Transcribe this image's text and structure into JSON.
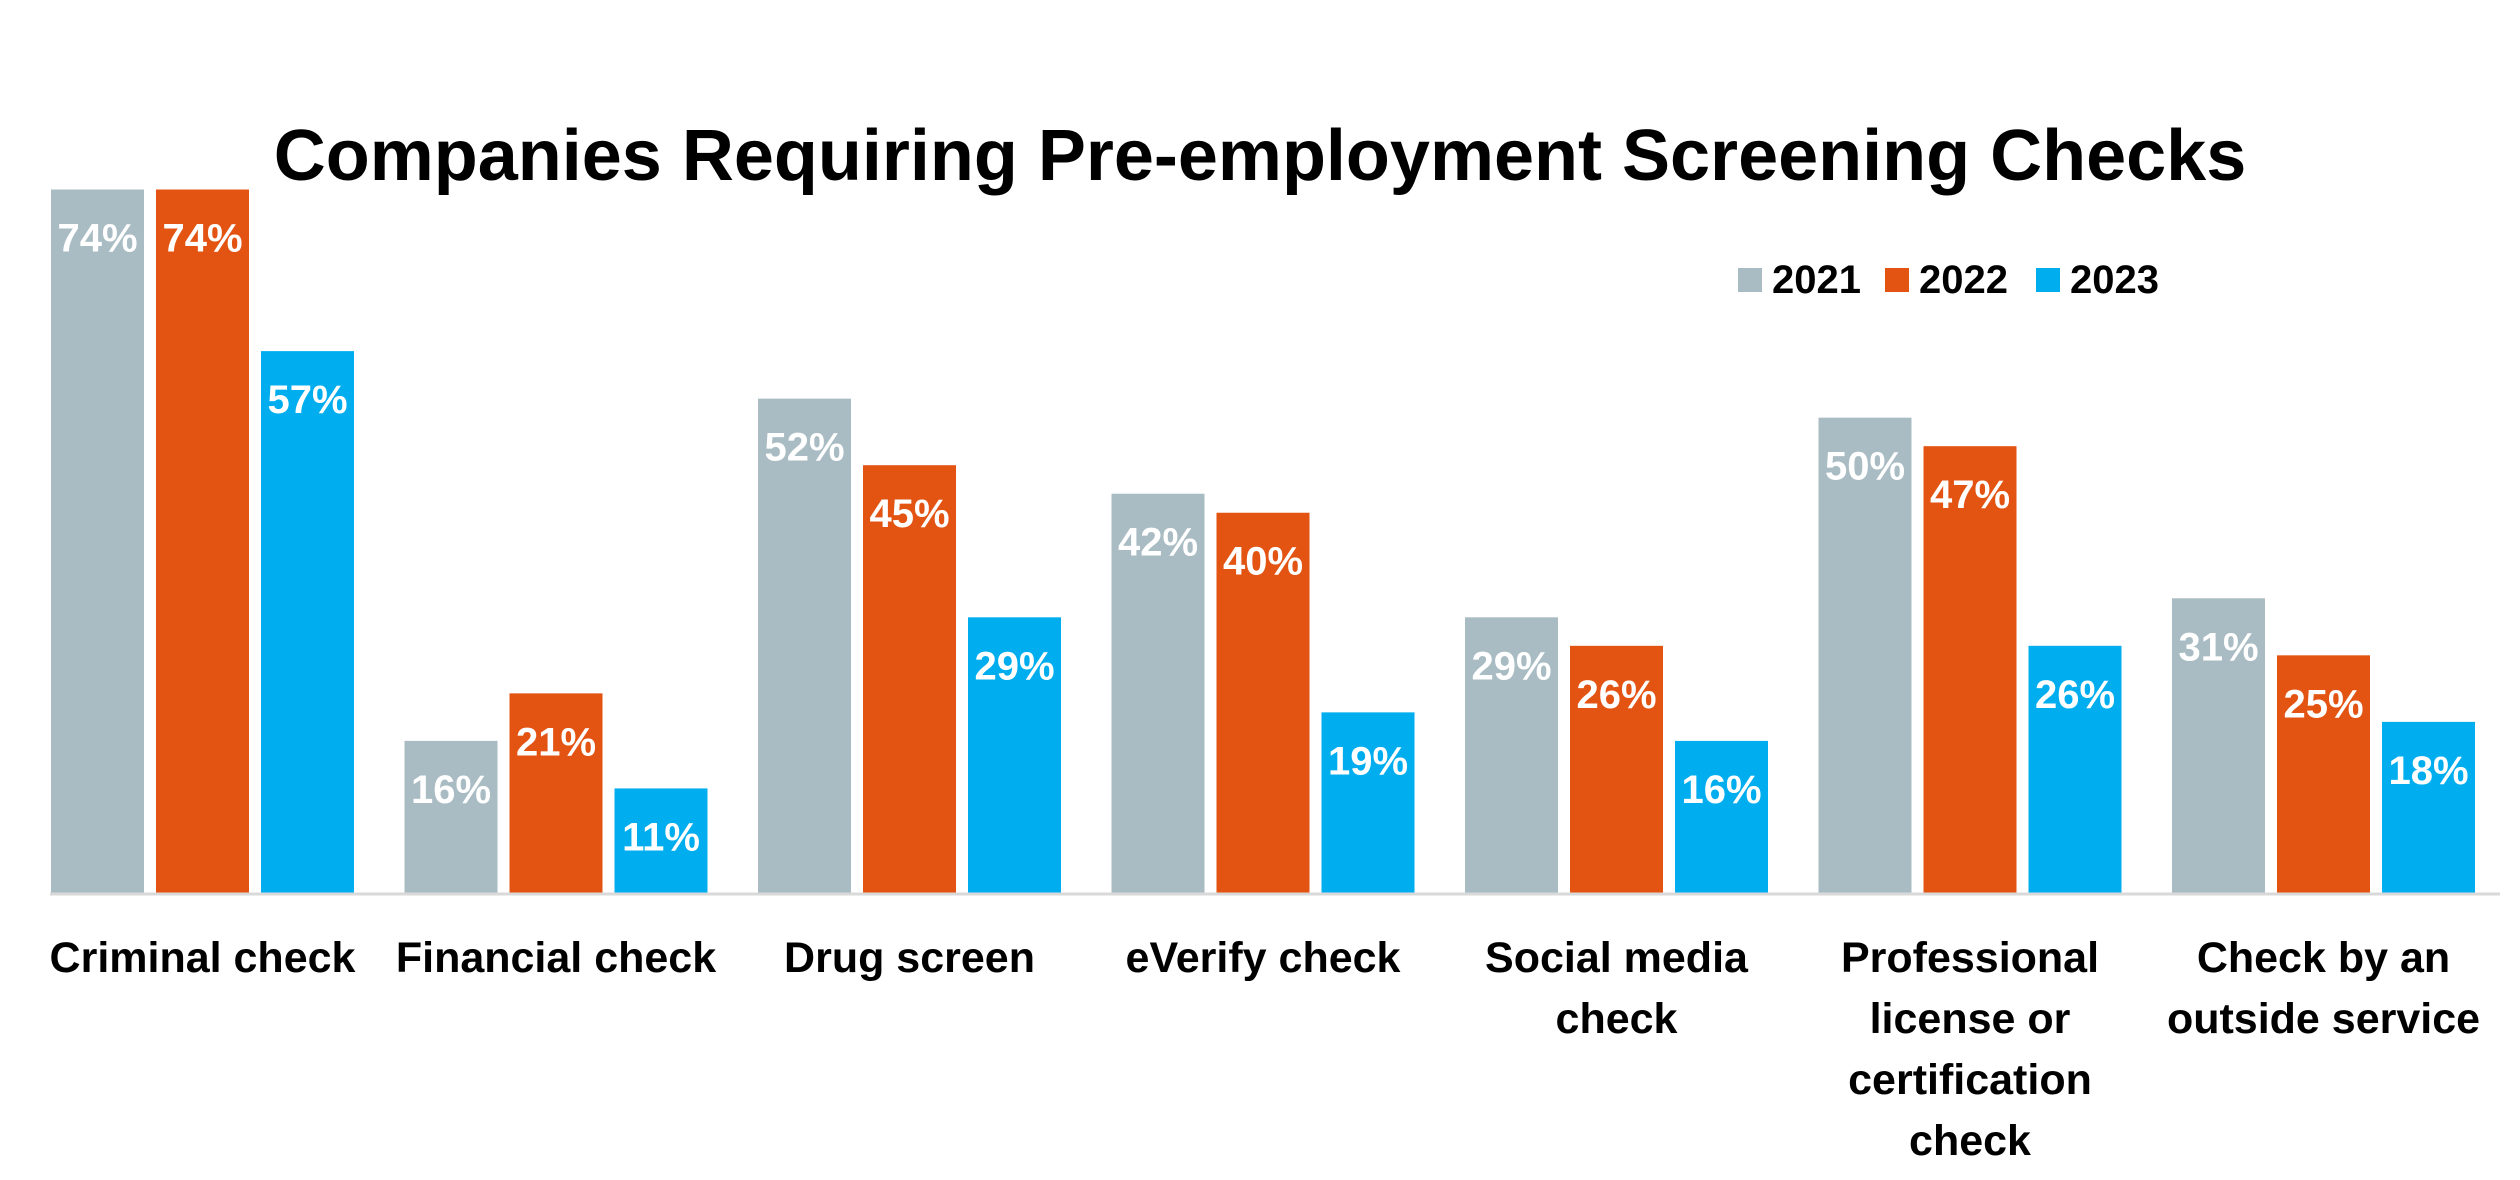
{
  "chart_data": {
    "type": "bar",
    "title": "Companies Requiring Pre-employment Screening Checks",
    "xlabel": "",
    "ylabel": "",
    "ylim": [
      0,
      75
    ],
    "grid": false,
    "legend_position": "top-right",
    "categories": [
      [
        "Criminal check"
      ],
      [
        "Financial check"
      ],
      [
        "Drug screen"
      ],
      [
        "eVerify check"
      ],
      [
        "Social media",
        "check"
      ],
      [
        "Professional",
        "license or",
        "certification",
        "check"
      ],
      [
        "Check by an",
        "outside service"
      ]
    ],
    "series": [
      {
        "name": "2021",
        "color": "#A9BCC3",
        "values": [
          74,
          16,
          52,
          42,
          29,
          50,
          31
        ],
        "labels": [
          "74%",
          "16%",
          "52%",
          "42%",
          "29%",
          "50%",
          "31%"
        ]
      },
      {
        "name": "2022",
        "color": "#E35413",
        "values": [
          74,
          21,
          45,
          40,
          26,
          47,
          25
        ],
        "labels": [
          "74%",
          "21%",
          "45%",
          "40%",
          "26%",
          "47%",
          "25%"
        ]
      },
      {
        "name": "2023",
        "color": "#00ADEE",
        "values": [
          57,
          11,
          29,
          19,
          16,
          26,
          18
        ],
        "labels": [
          "57%",
          "11%",
          "29%",
          "19%",
          "16%",
          "26%",
          "18%"
        ]
      }
    ]
  }
}
